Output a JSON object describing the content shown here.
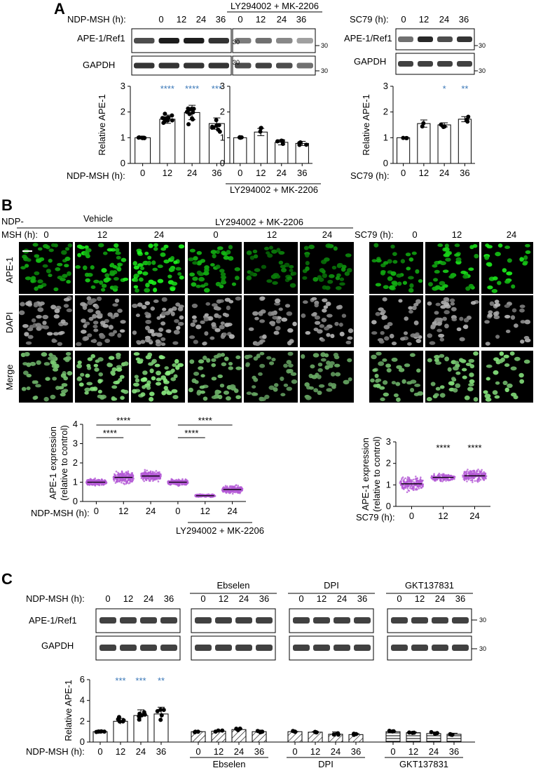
{
  "panels": {
    "A": {
      "label": "A",
      "blot_left": {
        "time_label": "NDP-MSH (h):",
        "times": [
          "0",
          "12",
          "24",
          "36"
        ],
        "rows": [
          "APE-1/Ref1",
          "GAPDH"
        ],
        "mw": [
          "30",
          "30"
        ]
      },
      "blot_mid": {
        "title": "LY294002 + MK-2206",
        "times": [
          "0",
          "12",
          "24",
          "36"
        ],
        "mw": [
          "30",
          "30"
        ]
      },
      "blot_right": {
        "time_label": "SC79 (h):",
        "times": [
          "0",
          "12",
          "24",
          "36"
        ],
        "rows": [
          "APE-1/Ref1",
          "GAPDH"
        ],
        "mw": [
          "30",
          "30"
        ]
      }
    },
    "B": {
      "label": "B",
      "header": {
        "time_label_line1": "NDP-",
        "time_label_line2": "MSH (h):",
        "groups": [
          "Vehicle",
          "LY294002 + MK-2206"
        ],
        "times": [
          "0",
          "12",
          "24"
        ],
        "sc79_label": "SC79 (h):",
        "sc79_times": [
          "0",
          "12",
          "24"
        ]
      },
      "row_labels": [
        "APE-1",
        "DAPI",
        "Merge"
      ]
    },
    "C": {
      "label": "C",
      "time_label": "NDP-MSH (h):",
      "times": [
        "0",
        "12",
        "24",
        "36"
      ],
      "groups": [
        "Ebselen",
        "DPI",
        "GKT137831"
      ],
      "rows": [
        "APE-1/Ref1",
        "GAPDH"
      ],
      "mw": [
        "30",
        "30"
      ]
    }
  },
  "colors": {
    "accent_blue": "#3b78b8",
    "violet": "#b45ad6",
    "ifgreen": "#2aa52a"
  },
  "chart_data": [
    {
      "id": "A-left",
      "type": "bar",
      "categories": [
        "0",
        "12",
        "24",
        "36"
      ],
      "values": [
        1.0,
        1.72,
        1.98,
        1.55
      ],
      "errors": [
        0.02,
        0.16,
        0.28,
        0.22
      ],
      "sig": [
        "",
        "****",
        "****",
        "***"
      ],
      "ylabel": "Relative APE-1",
      "xlabel": "NDP-MSH (h):",
      "ylim": [
        0,
        3
      ],
      "yticks": [
        "0",
        "1",
        "2",
        "3"
      ]
    },
    {
      "id": "A-mid",
      "type": "bar",
      "categories": [
        "0",
        "12",
        "24",
        "36"
      ],
      "values": [
        1.0,
        1.22,
        0.82,
        0.78
      ],
      "errors": [
        0.0,
        0.14,
        0.1,
        0.08
      ],
      "xlabel": "LY294002 + MK-2206",
      "ylim": [
        0,
        3
      ],
      "yticks": [
        "0",
        "1",
        "2",
        "3"
      ]
    },
    {
      "id": "A-right",
      "type": "bar",
      "categories": [
        "0",
        "12",
        "24",
        "36"
      ],
      "values": [
        1.0,
        1.55,
        1.5,
        1.72
      ],
      "errors": [
        0.0,
        0.14,
        0.08,
        0.1
      ],
      "sig": [
        "",
        "",
        "*",
        "**"
      ],
      "ylabel": "Relative APE-1",
      "xlabel": "SC79 (h):",
      "ylim": [
        0,
        3
      ],
      "yticks": [
        "0",
        "1",
        "2",
        "3"
      ]
    },
    {
      "id": "B-left",
      "type": "scatter",
      "categories": [
        "0",
        "12",
        "24",
        "0",
        "12",
        "24"
      ],
      "medians": [
        1.0,
        1.25,
        1.32,
        1.0,
        0.3,
        0.62
      ],
      "ylabel_line1": "APE-1 expression",
      "ylabel_line2": "(relative to control)",
      "xlabel": "NDP-MSH (h):",
      "group_label": "LY294002 + MK-2206",
      "ylim": [
        0,
        4
      ],
      "yticks": [
        "0",
        "1",
        "2",
        "3",
        "4"
      ],
      "comparisons": [
        "****",
        "****",
        "****",
        "****"
      ]
    },
    {
      "id": "B-right",
      "type": "scatter",
      "categories": [
        "0",
        "12",
        "24"
      ],
      "medians": [
        1.05,
        1.35,
        1.42
      ],
      "sig": [
        "",
        "****",
        "****"
      ],
      "ylabel_line1": "APE-1 expression",
      "ylabel_line2": "(relative to control)",
      "xlabel": "SC79 (h):",
      "ylim": [
        0,
        3
      ],
      "yticks": [
        "0",
        "1",
        "2",
        "3"
      ]
    },
    {
      "id": "C",
      "type": "bar",
      "categories": [
        "0",
        "12",
        "24",
        "36",
        "0",
        "12",
        "24",
        "36",
        "0",
        "12",
        "24",
        "36",
        "0",
        "12",
        "24",
        "36"
      ],
      "values": [
        1.0,
        2.0,
        2.55,
        2.7,
        1.0,
        1.05,
        1.2,
        1.0,
        1.0,
        0.95,
        0.75,
        0.72,
        1.0,
        0.9,
        0.82,
        0.75
      ],
      "errors": [
        0.02,
        0.28,
        0.55,
        0.65,
        0.02,
        0.1,
        0.1,
        0.15,
        0.02,
        0.05,
        0.22,
        0.1,
        0.02,
        0.05,
        0.15,
        0.1
      ],
      "sig": [
        "",
        "***",
        "***",
        "**",
        "",
        "",
        "",
        "",
        "",
        "",
        "",
        "",
        "",
        "",
        "",
        ""
      ],
      "ylabel": "Relative APE-1",
      "xlabel": "NDP-MSH (h):",
      "group_labels": [
        "Ebselen",
        "DPI",
        "GKT137831"
      ],
      "ylim": [
        0,
        6
      ],
      "yticks": [
        "0",
        "2",
        "4",
        "6"
      ]
    }
  ]
}
